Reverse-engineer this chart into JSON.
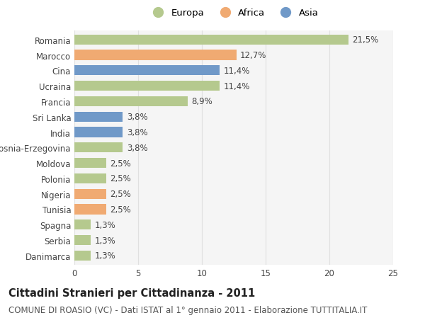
{
  "countries": [
    "Romania",
    "Marocco",
    "Cina",
    "Ucraina",
    "Francia",
    "Sri Lanka",
    "India",
    "Bosnia-Erzegovina",
    "Moldova",
    "Polonia",
    "Nigeria",
    "Tunisia",
    "Spagna",
    "Serbia",
    "Danimarca"
  ],
  "values": [
    21.5,
    12.7,
    11.4,
    11.4,
    8.9,
    3.8,
    3.8,
    3.8,
    2.5,
    2.5,
    2.5,
    2.5,
    1.3,
    1.3,
    1.3
  ],
  "labels": [
    "21,5%",
    "12,7%",
    "11,4%",
    "11,4%",
    "8,9%",
    "3,8%",
    "3,8%",
    "3,8%",
    "2,5%",
    "2,5%",
    "2,5%",
    "2,5%",
    "1,3%",
    "1,3%",
    "1,3%"
  ],
  "continents": [
    "Europa",
    "Africa",
    "Asia",
    "Europa",
    "Europa",
    "Asia",
    "Asia",
    "Europa",
    "Europa",
    "Europa",
    "Africa",
    "Africa",
    "Europa",
    "Europa",
    "Europa"
  ],
  "colors": {
    "Europa": "#b5c98e",
    "Africa": "#f0aa72",
    "Asia": "#7099c8"
  },
  "legend_labels": [
    "Europa",
    "Africa",
    "Asia"
  ],
  "xlim": [
    0,
    25
  ],
  "xticks": [
    0,
    5,
    10,
    15,
    20,
    25
  ],
  "title": "Cittadini Stranieri per Cittadinanza - 2011",
  "subtitle": "COMUNE DI ROASIO (VC) - Dati ISTAT al 1° gennaio 2011 - Elaborazione TUTTITALIA.IT",
  "background_color": "#ffffff",
  "bar_background": "#f5f5f5",
  "grid_color": "#e0e0e0",
  "title_fontsize": 10.5,
  "subtitle_fontsize": 8.5,
  "label_fontsize": 8.5,
  "tick_fontsize": 8.5,
  "legend_fontsize": 9.5
}
